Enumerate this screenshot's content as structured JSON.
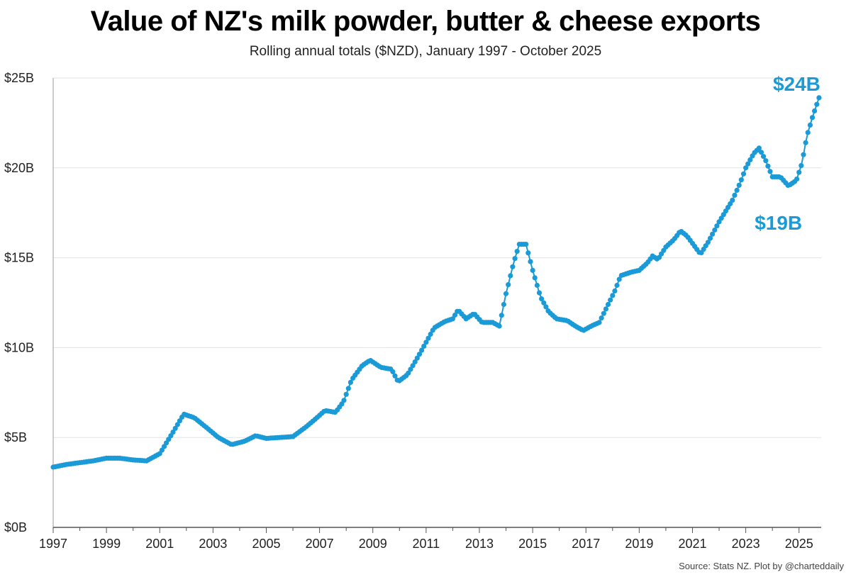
{
  "chart_data": {
    "type": "line",
    "title": "Value of NZ's milk powder, butter & cheese exports",
    "subtitle": "Rolling annual totals ($NZD), January 1997 - October 2025",
    "source": "Source: Stats NZ.  Plot by @charteddaily",
    "color": "#1a9bd7",
    "grid": "horizontal",
    "ylim": [
      0,
      25
    ],
    "xlim": [
      "1997-01",
      "2025-10"
    ],
    "yticks": [
      {
        "value": 0,
        "label": "$0B"
      },
      {
        "value": 5,
        "label": "$5B"
      },
      {
        "value": 10,
        "label": "$10B"
      },
      {
        "value": 15,
        "label": "$15B"
      },
      {
        "value": 20,
        "label": "$20B"
      },
      {
        "value": 25,
        "label": "$25B"
      }
    ],
    "xticks": [
      {
        "value": 1997,
        "label": "1997"
      },
      {
        "value": 1999,
        "label": "1999"
      },
      {
        "value": 2001,
        "label": "2001"
      },
      {
        "value": 2003,
        "label": "2003"
      },
      {
        "value": 2005,
        "label": "2005"
      },
      {
        "value": 2007,
        "label": "2007"
      },
      {
        "value": 2009,
        "label": "2009"
      },
      {
        "value": 2011,
        "label": "2011"
      },
      {
        "value": 2013,
        "label": "2013"
      },
      {
        "value": 2015,
        "label": "2015"
      },
      {
        "value": 2017,
        "label": "2017"
      },
      {
        "value": 2019,
        "label": "2019"
      },
      {
        "value": 2021,
        "label": "2021"
      },
      {
        "value": 2023,
        "label": "2023"
      },
      {
        "value": 2025,
        "label": "2025"
      }
    ],
    "annotations": [
      {
        "label": "$24B",
        "x": 2025.75,
        "y": 23.9
      },
      {
        "label": "$19B",
        "x": 2024.6,
        "y": 19.0
      }
    ],
    "series": [
      {
        "points": [
          [
            1997.0,
            3.35
          ],
          [
            1997.5,
            3.5
          ],
          [
            1998.0,
            3.6
          ],
          [
            1998.5,
            3.7
          ],
          [
            1999.0,
            3.85
          ],
          [
            1999.5,
            3.85
          ],
          [
            2000.0,
            3.75
          ],
          [
            2000.5,
            3.7
          ],
          [
            2001.0,
            4.1
          ],
          [
            2001.5,
            5.3
          ],
          [
            2001.9,
            6.3
          ],
          [
            2002.3,
            6.1
          ],
          [
            2002.8,
            5.5
          ],
          [
            2003.2,
            5.0
          ],
          [
            2003.7,
            4.6
          ],
          [
            2004.2,
            4.8
          ],
          [
            2004.6,
            5.1
          ],
          [
            2005.0,
            4.95
          ],
          [
            2005.5,
            5.0
          ],
          [
            2006.0,
            5.05
          ],
          [
            2006.5,
            5.6
          ],
          [
            2006.9,
            6.1
          ],
          [
            2007.2,
            6.5
          ],
          [
            2007.6,
            6.4
          ],
          [
            2007.9,
            7.0
          ],
          [
            2008.2,
            8.2
          ],
          [
            2008.6,
            9.0
          ],
          [
            2008.9,
            9.3
          ],
          [
            2009.3,
            8.9
          ],
          [
            2009.7,
            8.8
          ],
          [
            2009.95,
            8.1
          ],
          [
            2010.3,
            8.5
          ],
          [
            2010.7,
            9.5
          ],
          [
            2011.0,
            10.3
          ],
          [
            2011.3,
            11.1
          ],
          [
            2011.7,
            11.45
          ],
          [
            2012.0,
            11.6
          ],
          [
            2012.2,
            12.1
          ],
          [
            2012.5,
            11.6
          ],
          [
            2012.8,
            11.9
          ],
          [
            2013.1,
            11.4
          ],
          [
            2013.5,
            11.4
          ],
          [
            2013.75,
            11.2
          ],
          [
            2014.0,
            13.0
          ],
          [
            2014.3,
            14.8
          ],
          [
            2014.5,
            15.75
          ],
          [
            2014.75,
            15.75
          ],
          [
            2015.0,
            14.3
          ],
          [
            2015.3,
            12.8
          ],
          [
            2015.6,
            12.0
          ],
          [
            2015.9,
            11.6
          ],
          [
            2016.3,
            11.5
          ],
          [
            2016.6,
            11.2
          ],
          [
            2016.9,
            10.95
          ],
          [
            2017.2,
            11.2
          ],
          [
            2017.5,
            11.4
          ],
          [
            2017.8,
            12.3
          ],
          [
            2018.1,
            13.2
          ],
          [
            2018.3,
            14.0
          ],
          [
            2018.7,
            14.2
          ],
          [
            2019.0,
            14.3
          ],
          [
            2019.3,
            14.7
          ],
          [
            2019.5,
            15.1
          ],
          [
            2019.7,
            14.9
          ],
          [
            2020.0,
            15.6
          ],
          [
            2020.3,
            16.0
          ],
          [
            2020.55,
            16.5
          ],
          [
            2020.8,
            16.2
          ],
          [
            2021.0,
            15.8
          ],
          [
            2021.3,
            15.2
          ],
          [
            2021.6,
            15.9
          ],
          [
            2022.0,
            17.0
          ],
          [
            2022.5,
            18.2
          ],
          [
            2022.8,
            19.2
          ],
          [
            2023.0,
            20.0
          ],
          [
            2023.3,
            20.8
          ],
          [
            2023.5,
            21.1
          ],
          [
            2023.75,
            20.4
          ],
          [
            2024.0,
            19.5
          ],
          [
            2024.3,
            19.5
          ],
          [
            2024.6,
            19.0
          ],
          [
            2024.9,
            19.3
          ],
          [
            2025.1,
            20.2
          ],
          [
            2025.3,
            21.8
          ],
          [
            2025.5,
            22.8
          ],
          [
            2025.75,
            23.9
          ]
        ]
      }
    ]
  }
}
